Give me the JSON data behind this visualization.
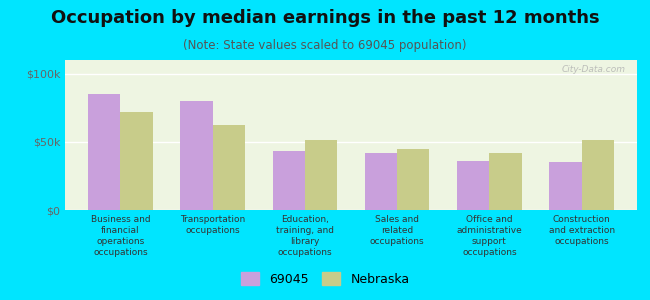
{
  "title": "Occupation by median earnings in the past 12 months",
  "subtitle": "(Note: State values scaled to 69045 population)",
  "categories": [
    "Business and\nfinancial\noperations\noccupations",
    "Transportation\noccupations",
    "Education,\ntraining, and\nlibrary\noccupations",
    "Sales and\nrelated\noccupations",
    "Office and\nadministrative\nsupport\noccupations",
    "Construction\nand extraction\noccupations"
  ],
  "values_69045": [
    85000,
    80000,
    43000,
    42000,
    36000,
    35000
  ],
  "values_nebraska": [
    72000,
    62000,
    51000,
    45000,
    42000,
    51000
  ],
  "bar_color_69045": "#c9a0dc",
  "bar_color_nebraska": "#c8cc8a",
  "background_color": "#00e5ff",
  "plot_bg_color": "#eef5e2",
  "ylim": [
    0,
    110000
  ],
  "ytick_labels": [
    "$0",
    "$50k",
    "$100k"
  ],
  "watermark": "City-Data.com",
  "legend_labels": [
    "69045",
    "Nebraska"
  ],
  "bar_width": 0.35,
  "title_fontsize": 13,
  "subtitle_fontsize": 8.5,
  "axis_label_fontsize": 6.5,
  "ytick_fontsize": 8
}
